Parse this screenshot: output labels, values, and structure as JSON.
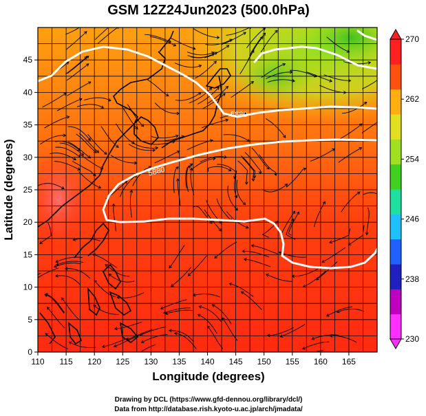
{
  "title": "GSM 12Z24Jun2023 (500.0hPa)",
  "xlabel": "Longitude (degrees)",
  "ylabel": "Latitude  (degrees)",
  "credit_line1": "Drawing by DCL (https://www.gfd-dennou.org/library/dcl/)",
  "credit_line2": "Data from http://database.rish.kyoto-u.ac.jp/arch/jmadata/",
  "map": {
    "type": "shaded temperature map with streamlines and height contours",
    "extent": {
      "lon": [
        110,
        170
      ],
      "lat": [
        0,
        50
      ]
    },
    "grid": true,
    "x_ticks": [
      "110",
      "115",
      "120",
      "125",
      "130",
      "135",
      "140",
      "145",
      "150",
      "155",
      "160",
      "165"
    ],
    "y_ticks": [
      "0",
      "5",
      "10",
      "15",
      "20",
      "25",
      "30",
      "35",
      "40",
      "45"
    ],
    "contour_labels": [
      "5880",
      "5880"
    ],
    "colors": {
      "contour": "#ffffff",
      "coastline": "#000000",
      "warm": "#ff3010",
      "mid": "#ff9a10",
      "cool": "#a0e020",
      "cold_green": "#50c820"
    }
  },
  "colorbar": {
    "min": 230,
    "max": 270,
    "ticks": [
      "270",
      "262",
      "254",
      "246",
      "238",
      "230"
    ],
    "colors": [
      "#ff30ff",
      "#c000c0",
      "#2020c0",
      "#2060ff",
      "#20c0ff",
      "#20e0a0",
      "#40d020",
      "#a0e020",
      "#e0e020",
      "#ffb010",
      "#ff5010",
      "#ff2020"
    ]
  }
}
